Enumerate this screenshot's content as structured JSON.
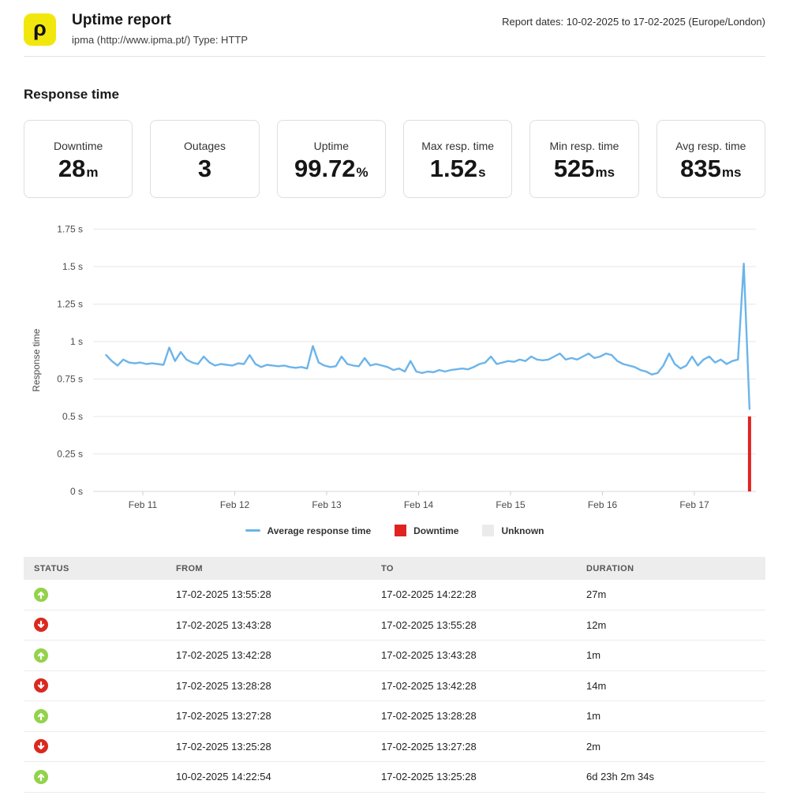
{
  "header": {
    "logo_glyph": "ρ",
    "title": "Uptime report",
    "subtitle": "ipma (http://www.ipma.pt/) Type: HTTP",
    "report_dates": "Report dates: 10-02-2025 to 17-02-2025 (Europe/London)"
  },
  "section_title": "Response time",
  "stats": [
    {
      "label": "Downtime",
      "value": "28",
      "unit": "m"
    },
    {
      "label": "Outages",
      "value": "3",
      "unit": ""
    },
    {
      "label": "Uptime",
      "value": "99.72",
      "unit": "%"
    },
    {
      "label": "Max resp. time",
      "value": "1.52",
      "unit": "s"
    },
    {
      "label": "Min resp. time",
      "value": "525",
      "unit": "ms"
    },
    {
      "label": "Avg resp. time",
      "value": "835",
      "unit": "ms"
    }
  ],
  "chart_data": {
    "type": "line",
    "title": "",
    "xlabel": "",
    "ylabel": "Response time",
    "ylim": [
      0,
      1.75
    ],
    "grid": "horizontal-only",
    "y_ticks": [
      "0 s",
      "0.25 s",
      "0.5 s",
      "0.75 s",
      "1 s",
      "1.25 s",
      "1.5 s",
      "1.75 s"
    ],
    "y_tick_values": [
      0,
      0.25,
      0.5,
      0.75,
      1,
      1.25,
      1.5,
      1.75
    ],
    "x_ticks": [
      "Feb 11",
      "Feb 12",
      "Feb 13",
      "Feb 14",
      "Feb 15",
      "Feb 16",
      "Feb 17"
    ],
    "x_tick_days": [
      1,
      2,
      3,
      4,
      5,
      6,
      7
    ],
    "x_note": "x in days after 2025-02-10 00:00; data spans 10-02 14:22 to 17-02 14:22",
    "series": [
      {
        "name": "Average response time",
        "unit": "s",
        "color": "#6cb4ea",
        "x_start_day": 0.6,
        "x_end_day": 7.6,
        "values": [
          0.91,
          0.87,
          0.84,
          0.88,
          0.86,
          0.855,
          0.86,
          0.85,
          0.855,
          0.85,
          0.845,
          0.96,
          0.87,
          0.93,
          0.88,
          0.86,
          0.85,
          0.9,
          0.86,
          0.84,
          0.85,
          0.845,
          0.84,
          0.855,
          0.85,
          0.91,
          0.85,
          0.83,
          0.845,
          0.84,
          0.835,
          0.84,
          0.83,
          0.825,
          0.83,
          0.82,
          0.97,
          0.86,
          0.84,
          0.83,
          0.835,
          0.9,
          0.85,
          0.84,
          0.835,
          0.89,
          0.84,
          0.85,
          0.84,
          0.83,
          0.81,
          0.82,
          0.8,
          0.87,
          0.8,
          0.79,
          0.8,
          0.795,
          0.81,
          0.8,
          0.81,
          0.815,
          0.82,
          0.815,
          0.83,
          0.85,
          0.86,
          0.9,
          0.85,
          0.86,
          0.87,
          0.865,
          0.88,
          0.87,
          0.9,
          0.88,
          0.875,
          0.88,
          0.9,
          0.92,
          0.88,
          0.89,
          0.88,
          0.9,
          0.92,
          0.89,
          0.9,
          0.92,
          0.91,
          0.87,
          0.85,
          0.84,
          0.83,
          0.81,
          0.8,
          0.78,
          0.79,
          0.84,
          0.92,
          0.85,
          0.82,
          0.84,
          0.9,
          0.84,
          0.88,
          0.9,
          0.86,
          0.88,
          0.85,
          0.87,
          0.88,
          1.52,
          0.55
        ]
      }
    ],
    "downtime_marker": {
      "x_day": 7.6,
      "from_s": 0,
      "to_s": 0.5,
      "color": "#e02222"
    },
    "legend": [
      {
        "label": "Average response time",
        "swatch": "line",
        "color": "#6cb4ea"
      },
      {
        "label": "Downtime",
        "swatch": "square",
        "color": "#e02222"
      },
      {
        "label": "Unknown",
        "swatch": "square",
        "color": "#ebebeb"
      }
    ],
    "legend_position": "bottom-center"
  },
  "table": {
    "headers": [
      "STATUS",
      "FROM",
      "TO",
      "DURATION"
    ],
    "rows": [
      {
        "status": "up",
        "from": "17-02-2025 13:55:28",
        "to": "17-02-2025 14:22:28",
        "duration": "27m"
      },
      {
        "status": "down",
        "from": "17-02-2025 13:43:28",
        "to": "17-02-2025 13:55:28",
        "duration": "12m"
      },
      {
        "status": "up",
        "from": "17-02-2025 13:42:28",
        "to": "17-02-2025 13:43:28",
        "duration": "1m"
      },
      {
        "status": "down",
        "from": "17-02-2025 13:28:28",
        "to": "17-02-2025 13:42:28",
        "duration": "14m"
      },
      {
        "status": "up",
        "from": "17-02-2025 13:27:28",
        "to": "17-02-2025 13:28:28",
        "duration": "1m"
      },
      {
        "status": "down",
        "from": "17-02-2025 13:25:28",
        "to": "17-02-2025 13:27:28",
        "duration": "2m"
      },
      {
        "status": "up",
        "from": "10-02-2025 14:22:54",
        "to": "17-02-2025 13:25:28",
        "duration": "6d 23h 2m 34s"
      }
    ]
  },
  "colors": {
    "brand_yellow": "#f2e70d",
    "line_blue": "#6cb4ea",
    "downtime_red": "#e02222",
    "unknown_gray": "#ebebeb",
    "status_up_green": "#93d24b",
    "status_down_red": "#da291f",
    "gridline": "#e7e7e7",
    "axis_line": "#d9d9d9",
    "table_header_bg": "#ededed"
  }
}
